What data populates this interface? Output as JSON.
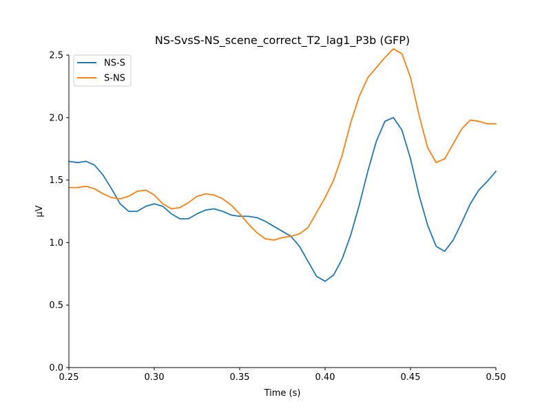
{
  "chart_data": {
    "type": "line",
    "title": "NS-SvsS-NS_scene_correct_T2_lag1_P3b (GFP)",
    "xlabel": "Time (s)",
    "ylabel": "µV",
    "xlim": [
      0.25,
      0.5
    ],
    "ylim": [
      0.0,
      2.5
    ],
    "xticks": [
      0.25,
      0.3,
      0.35,
      0.4,
      0.45,
      0.5
    ],
    "xtick_labels": [
      "0.25",
      "0.30",
      "0.35",
      "0.40",
      "0.45",
      "0.50"
    ],
    "yticks": [
      0.0,
      0.5,
      1.0,
      1.5,
      2.0,
      2.5
    ],
    "ytick_labels": [
      "0.0",
      "0.5",
      "1.0",
      "1.5",
      "2.0",
      "2.5"
    ],
    "grid": false,
    "legend_position": "top-left",
    "x": [
      0.25,
      0.255,
      0.26,
      0.265,
      0.27,
      0.275,
      0.28,
      0.285,
      0.29,
      0.295,
      0.3,
      0.305,
      0.31,
      0.315,
      0.32,
      0.325,
      0.33,
      0.335,
      0.34,
      0.345,
      0.35,
      0.355,
      0.36,
      0.365,
      0.37,
      0.375,
      0.38,
      0.385,
      0.39,
      0.395,
      0.4,
      0.405,
      0.41,
      0.415,
      0.42,
      0.425,
      0.43,
      0.435,
      0.44,
      0.445,
      0.45,
      0.455,
      0.46,
      0.465,
      0.47,
      0.475,
      0.48,
      0.485,
      0.49,
      0.495,
      0.5
    ],
    "series": [
      {
        "name": "NS-S",
        "color": "#1f77b4",
        "values": [
          1.65,
          1.64,
          1.65,
          1.62,
          1.54,
          1.43,
          1.31,
          1.25,
          1.25,
          1.29,
          1.31,
          1.29,
          1.23,
          1.19,
          1.19,
          1.23,
          1.26,
          1.27,
          1.25,
          1.22,
          1.21,
          1.21,
          1.2,
          1.17,
          1.13,
          1.09,
          1.05,
          0.97,
          0.85,
          0.73,
          0.69,
          0.74,
          0.87,
          1.06,
          1.3,
          1.57,
          1.81,
          1.97,
          2.0,
          1.9,
          1.67,
          1.38,
          1.14,
          0.97,
          0.93,
          1.02,
          1.16,
          1.31,
          1.42,
          1.49,
          1.57
        ]
      },
      {
        "name": "S-NS",
        "color": "#ff7f0e",
        "values": [
          1.44,
          1.44,
          1.45,
          1.43,
          1.39,
          1.36,
          1.35,
          1.37,
          1.41,
          1.42,
          1.38,
          1.31,
          1.27,
          1.28,
          1.32,
          1.37,
          1.39,
          1.38,
          1.35,
          1.3,
          1.23,
          1.15,
          1.08,
          1.03,
          1.02,
          1.04,
          1.05,
          1.07,
          1.12,
          1.24,
          1.36,
          1.5,
          1.7,
          1.96,
          2.17,
          2.32,
          2.4,
          2.48,
          2.55,
          2.51,
          2.32,
          2.02,
          1.76,
          1.64,
          1.67,
          1.79,
          1.91,
          1.98,
          1.97,
          1.95,
          1.95
        ]
      }
    ]
  }
}
